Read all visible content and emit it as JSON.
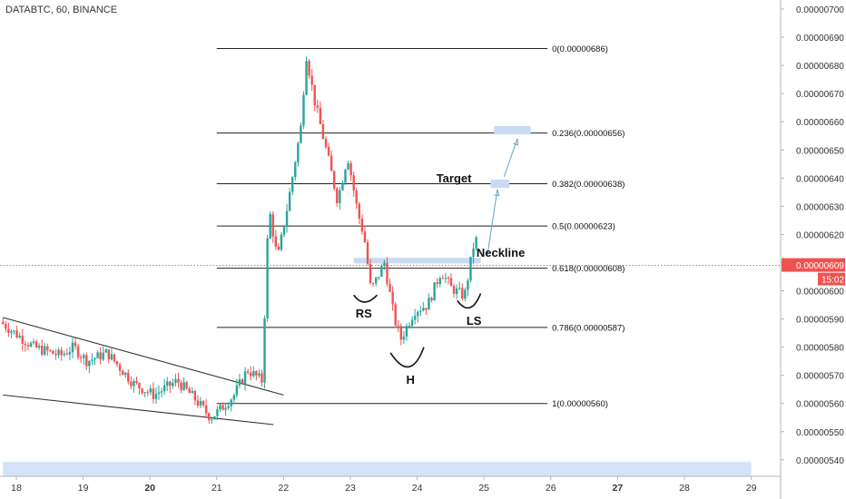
{
  "header": {
    "title": "DATABTC, 60, BINANCE"
  },
  "chart_data": {
    "type": "candlestick",
    "y_axis": {
      "ticks": [
        "0.00000700",
        "0.00000690",
        "0.00000680",
        "0.00000670",
        "0.00000660",
        "0.00000650",
        "0.00000640",
        "0.00000630",
        "0.00000620",
        "0.00000610",
        "0.00000600",
        "0.00000590",
        "0.00000580",
        "0.00000570",
        "0.00000560",
        "0.00000550",
        "0.00000540"
      ],
      "range": [
        5.37e-06,
        7.03e-06
      ]
    },
    "x_axis": {
      "ticks": [
        "18",
        "19",
        "20",
        "21",
        "22",
        "23",
        "24",
        "25",
        "26",
        "27",
        "28",
        "29"
      ],
      "bold_ticks": [
        "20",
        "27"
      ],
      "range": [
        17.8,
        29.3
      ]
    },
    "current_price": {
      "label": "0.00000609",
      "value": 6.09e-06,
      "countdown": "15:02"
    },
    "fib_levels": [
      {
        "label": "0(0.00000686)",
        "value": 6.86e-06
      },
      {
        "label": "0.236(0.00000656)",
        "value": 6.56e-06
      },
      {
        "label": "0.382(0.00000638)",
        "value": 6.38e-06
      },
      {
        "label": "0.5(0.00000623)",
        "value": 6.23e-06
      },
      {
        "label": "0.618(0.00000608)",
        "value": 6.08e-06
      },
      {
        "label": "0.786(0.00000587)",
        "value": 5.87e-06
      },
      {
        "label": "1(0.00000560)",
        "value": 5.6e-06
      }
    ],
    "fib_range": {
      "x_start": 21.0,
      "x_end": 25.95
    },
    "annotations": [
      {
        "text": "Target",
        "x": 24.55,
        "y": 6.385e-06
      },
      {
        "text": "Neckline",
        "x": 25.25,
        "y": 6.12e-06
      },
      {
        "text": "RS",
        "x": 23.2,
        "y": 5.905e-06
      },
      {
        "text": "H",
        "x": 23.9,
        "y": 5.67e-06
      },
      {
        "text": "LS",
        "x": 24.85,
        "y": 5.88e-06
      }
    ],
    "wedge_lines": [
      {
        "from": [
          17.8,
          5.905e-06
        ],
        "to": [
          22.0,
          5.63e-06
        ]
      },
      {
        "from": [
          17.8,
          5.63e-06
        ],
        "to": [
          21.85,
          5.525e-06
        ]
      }
    ],
    "neckline_zone": {
      "x_start": 23.05,
      "x_end": 24.95,
      "y_top": 6.117e-06,
      "y_bottom": 6.097e-06
    },
    "target_zones": [
      {
        "x_start": 25.1,
        "x_end": 25.38,
        "y_top": 6.395e-06,
        "y_bottom": 6.365e-06
      },
      {
        "x_start": 25.15,
        "x_end": 25.7,
        "y_top": 6.585e-06,
        "y_bottom": 6.555e-06
      }
    ],
    "bottom_band": {
      "x_start": 17.8,
      "x_end": 29.0
    },
    "arrows": [
      {
        "from": [
          25.05,
          6.125e-06
        ],
        "to": [
          25.2,
          6.36e-06
        ]
      },
      {
        "from": [
          25.3,
          6.405e-06
        ],
        "to": [
          25.5,
          6.54e-06
        ]
      }
    ],
    "pattern_curves": [
      {
        "name": "RS",
        "points": [
          [
            23.05,
            5.985e-06
          ],
          [
            23.2,
            5.96e-06
          ],
          [
            23.4,
            5.985e-06
          ]
        ]
      },
      {
        "name": "H",
        "points": [
          [
            23.6,
            5.78e-06
          ],
          [
            23.9,
            5.73e-06
          ],
          [
            24.1,
            5.8e-06
          ]
        ]
      },
      {
        "name": "LS",
        "points": [
          [
            24.6,
            5.965e-06
          ],
          [
            24.8,
            5.94e-06
          ],
          [
            24.95,
            5.99e-06
          ]
        ]
      }
    ],
    "key_prices": [
      {
        "x": 17.8,
        "y": 5.89e-06
      },
      {
        "x": 18.3,
        "y": 5.8e-06
      },
      {
        "x": 18.7,
        "y": 5.77e-06
      },
      {
        "x": 18.9,
        "y": 5.8e-06
      },
      {
        "x": 19.1,
        "y": 5.75e-06
      },
      {
        "x": 19.4,
        "y": 5.78e-06
      },
      {
        "x": 19.8,
        "y": 5.67e-06
      },
      {
        "x": 20.1,
        "y": 5.63e-06
      },
      {
        "x": 20.45,
        "y": 5.68e-06
      },
      {
        "x": 20.7,
        "y": 5.62e-06
      },
      {
        "x": 20.95,
        "y": 5.55e-06
      },
      {
        "x": 21.1,
        "y": 5.58e-06
      },
      {
        "x": 21.3,
        "y": 5.63e-06
      },
      {
        "x": 21.5,
        "y": 5.72e-06
      },
      {
        "x": 21.72,
        "y": 5.68e-06
      },
      {
        "x": 21.82,
        "y": 6.3e-06
      },
      {
        "x": 21.95,
        "y": 6.11e-06
      },
      {
        "x": 22.1,
        "y": 6.3e-06
      },
      {
        "x": 22.3,
        "y": 6.58e-06
      },
      {
        "x": 22.38,
        "y": 6.84e-06
      },
      {
        "x": 22.5,
        "y": 6.68e-06
      },
      {
        "x": 22.7,
        "y": 6.48e-06
      },
      {
        "x": 22.85,
        "y": 6.32e-06
      },
      {
        "x": 23.0,
        "y": 6.48e-06
      },
      {
        "x": 23.15,
        "y": 6.28e-06
      },
      {
        "x": 23.25,
        "y": 6.19e-06
      },
      {
        "x": 23.35,
        "y": 6e-06
      },
      {
        "x": 23.55,
        "y": 6.1e-06
      },
      {
        "x": 23.7,
        "y": 5.9e-06
      },
      {
        "x": 23.8,
        "y": 5.83e-06
      },
      {
        "x": 24.0,
        "y": 5.93e-06
      },
      {
        "x": 24.2,
        "y": 5.95e-06
      },
      {
        "x": 24.4,
        "y": 6.07e-06
      },
      {
        "x": 24.55,
        "y": 6.01e-06
      },
      {
        "x": 24.75,
        "y": 5.98e-06
      },
      {
        "x": 24.9,
        "y": 6.18e-06
      }
    ]
  }
}
